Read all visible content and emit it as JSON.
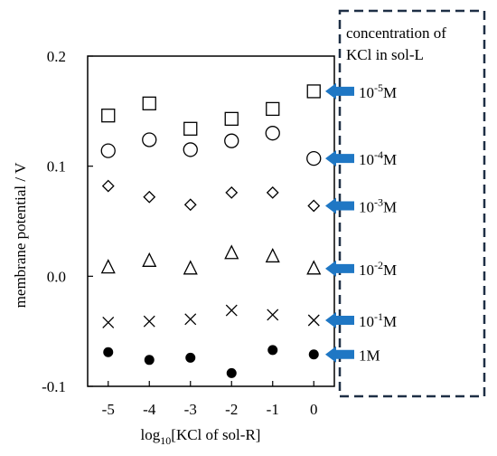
{
  "chart_data": {
    "type": "scatter",
    "title": "",
    "xlabel_main": "log",
    "xlabel_sub": "10",
    "xlabel_rest": "[KCl of sol-R]",
    "ylabel": "membrane potential / V",
    "xlim": [
      -5.5,
      0.5
    ],
    "ylim": [
      -0.1,
      0.2
    ],
    "x_ticks": [
      "-5",
      "-4",
      "-3",
      "-2",
      "-1",
      "0"
    ],
    "y_ticks": [
      "0.2",
      "0.1",
      "0.0",
      "-0.1"
    ],
    "grid": false,
    "x": [
      -5,
      -4,
      -3,
      -2,
      -1,
      0
    ],
    "series": [
      {
        "marker": "square",
        "values": [
          0.146,
          0.157,
          0.134,
          0.143,
          0.152,
          0.168
        ]
      },
      {
        "marker": "circle",
        "values": [
          0.114,
          0.124,
          0.115,
          0.123,
          0.13,
          0.107
        ]
      },
      {
        "marker": "diamond",
        "values": [
          0.082,
          0.072,
          0.065,
          0.076,
          0.076,
          0.064
        ]
      },
      {
        "marker": "triangle",
        "values": [
          0.008,
          0.014,
          0.007,
          0.021,
          0.018,
          0.007
        ]
      },
      {
        "marker": "x",
        "values": [
          -0.042,
          -0.041,
          -0.039,
          -0.031,
          -0.035,
          -0.04
        ]
      },
      {
        "marker": "filled-circle",
        "values": [
          -0.069,
          -0.076,
          -0.074,
          -0.088,
          -0.067,
          -0.071
        ]
      }
    ],
    "legend_title_line1": "concentration of",
    "legend_title_line2": "KCl in sol-L",
    "series_labels": [
      {
        "base": "10",
        "exp": "-5",
        "unit": "M"
      },
      {
        "base": "10",
        "exp": "-4",
        "unit": "M"
      },
      {
        "base": "10",
        "exp": "-3",
        "unit": "M"
      },
      {
        "base": "10",
        "exp": "-2",
        "unit": "M"
      },
      {
        "base": "10",
        "exp": "-1",
        "unit": "M"
      },
      {
        "base": "1",
        "exp": "",
        "unit": "M"
      }
    ],
    "arrow_color": "#1f77c4",
    "box_border_color": "#1e2f45"
  }
}
